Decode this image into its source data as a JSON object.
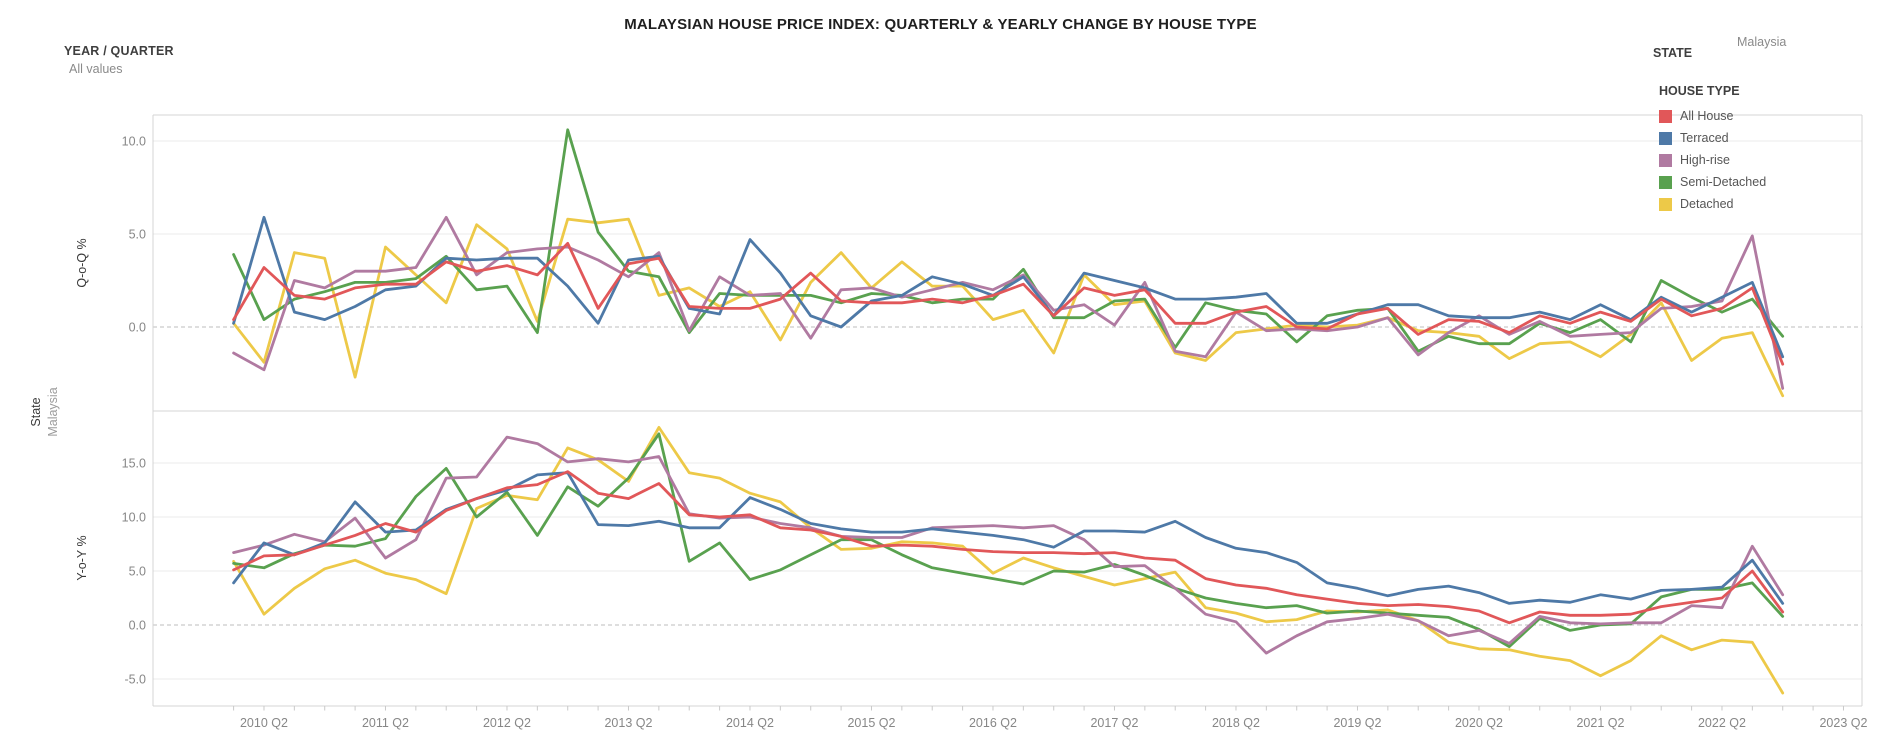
{
  "title": "MALAYSIAN HOUSE PRICE INDEX: QUARTERLY & YEARLY CHANGE BY HOUSE TYPE",
  "filters": {
    "year_quarter": {
      "label": "YEAR / QUARTER",
      "value": "All values"
    },
    "state": {
      "label": "STATE",
      "value": "Malaysia"
    }
  },
  "row_header": {
    "field": "State",
    "value": "Malaysia"
  },
  "legend": {
    "title": "HOUSE TYPE",
    "items": [
      {
        "label": "All House",
        "color": "#e15759"
      },
      {
        "label": "Terraced",
        "color": "#4e79a7"
      },
      {
        "label": "High-rise",
        "color": "#b07aa1"
      },
      {
        "label": "Semi-Detached",
        "color": "#59a14f"
      },
      {
        "label": "Detached",
        "color": "#edc948"
      }
    ]
  },
  "chart_data": {
    "type": "line",
    "title": "MALAYSIAN HOUSE PRICE INDEX: QUARTERLY & YEARLY CHANGE BY HOUSE TYPE",
    "grid": true,
    "legend_position": "top-right",
    "x": [
      "2010 Q1",
      "2010 Q2",
      "2010 Q3",
      "2010 Q4",
      "2011 Q1",
      "2011 Q2",
      "2011 Q3",
      "2011 Q4",
      "2012 Q1",
      "2012 Q2",
      "2012 Q3",
      "2012 Q4",
      "2013 Q1",
      "2013 Q2",
      "2013 Q3",
      "2013 Q4",
      "2014 Q1",
      "2014 Q2",
      "2014 Q3",
      "2014 Q4",
      "2015 Q1",
      "2015 Q2",
      "2015 Q3",
      "2015 Q4",
      "2016 Q1",
      "2016 Q2",
      "2016 Q3",
      "2016 Q4",
      "2017 Q1",
      "2017 Q2",
      "2017 Q3",
      "2017 Q4",
      "2018 Q1",
      "2018 Q2",
      "2018 Q3",
      "2018 Q4",
      "2019 Q1",
      "2019 Q2",
      "2019 Q3",
      "2019 Q4",
      "2020 Q1",
      "2020 Q2",
      "2020 Q3",
      "2020 Q4",
      "2021 Q1",
      "2021 Q2",
      "2021 Q3",
      "2021 Q4",
      "2022 Q1",
      "2022 Q2",
      "2022 Q3",
      "2022 Q4"
    ],
    "x_axis_tick_labels": [
      "2010 Q2",
      "2011 Q2",
      "2012 Q2",
      "2013 Q2",
      "2014 Q2",
      "2015 Q2",
      "2016 Q2",
      "2017 Q2",
      "2018 Q2",
      "2019 Q2",
      "2020 Q2",
      "2021 Q2",
      "2022 Q2",
      "2023 Q2"
    ],
    "panels": [
      {
        "ylabel": "Q-o-Q %",
        "ylim": [
          -4.5,
          11.4
        ],
        "yticks": [
          10,
          5,
          0
        ],
        "series": [
          {
            "name": "All House",
            "color": "#e15759",
            "values": [
              0.4,
              3.2,
              1.7,
              1.5,
              2.1,
              2.3,
              2.3,
              3.5,
              3.0,
              3.3,
              2.8,
              4.5,
              1.0,
              3.4,
              3.7,
              1.1,
              1.0,
              1.0,
              1.5,
              2.9,
              1.4,
              1.3,
              1.3,
              1.5,
              1.3,
              1.7,
              2.3,
              0.6,
              2.1,
              1.7,
              2.0,
              0.2,
              0.2,
              0.8,
              1.1,
              0.0,
              -0.1,
              0.7,
              1.0,
              -0.4,
              0.4,
              0.3,
              -0.3,
              0.6,
              0.2,
              0.8,
              0.3,
              1.5,
              0.6,
              1.0,
              2.1,
              -2.0
            ]
          },
          {
            "name": "Terraced",
            "color": "#4e79a7",
            "values": [
              0.2,
              5.9,
              0.8,
              0.4,
              1.1,
              2.0,
              2.2,
              3.7,
              3.6,
              3.7,
              3.7,
              2.2,
              0.2,
              3.6,
              3.8,
              1.0,
              0.7,
              4.7,
              2.9,
              0.6,
              0.0,
              1.4,
              1.7,
              2.7,
              2.3,
              1.7,
              2.7,
              0.6,
              2.9,
              2.5,
              2.1,
              1.5,
              1.5,
              1.6,
              1.8,
              0.2,
              0.2,
              0.7,
              1.2,
              1.2,
              0.6,
              0.5,
              0.5,
              0.8,
              0.4,
              1.2,
              0.4,
              1.6,
              0.8,
              1.6,
              2.4,
              -1.6
            ]
          },
          {
            "name": "High-rise",
            "color": "#b07aa1",
            "values": [
              -1.4,
              -2.3,
              2.5,
              2.1,
              3.0,
              3.0,
              3.2,
              5.9,
              2.8,
              4.0,
              4.2,
              4.3,
              3.6,
              2.7,
              4.0,
              -0.2,
              2.7,
              1.7,
              1.8,
              -0.6,
              2.0,
              2.1,
              1.6,
              2.0,
              2.4,
              2.0,
              2.8,
              0.9,
              1.2,
              0.1,
              2.4,
              -1.3,
              -1.6,
              0.8,
              -0.2,
              -0.1,
              -0.2,
              0.0,
              0.5,
              -1.5,
              -0.3,
              0.6,
              -0.4,
              0.3,
              -0.5,
              -0.4,
              -0.3,
              1.0,
              1.1,
              1.4,
              4.9,
              -3.3
            ]
          },
          {
            "name": "Semi-Detached",
            "color": "#59a14f",
            "values": [
              3.9,
              0.4,
              1.5,
              1.9,
              2.4,
              2.4,
              2.6,
              3.8,
              2.0,
              2.2,
              -0.3,
              10.6,
              5.1,
              3.0,
              2.7,
              -0.3,
              1.8,
              1.7,
              1.7,
              1.7,
              1.3,
              1.8,
              1.7,
              1.3,
              1.5,
              1.5,
              3.1,
              0.5,
              0.5,
              1.4,
              1.5,
              -1.1,
              1.3,
              0.9,
              0.7,
              -0.8,
              0.6,
              0.9,
              1.0,
              -1.3,
              -0.5,
              -0.9,
              -0.9,
              0.2,
              -0.3,
              0.4,
              -0.8,
              2.5,
              1.6,
              0.8,
              1.5,
              -0.5
            ]
          },
          {
            "name": "Detached",
            "color": "#edc948",
            "values": [
              0.2,
              -1.9,
              4.0,
              3.7,
              -2.7,
              4.3,
              2.8,
              1.3,
              5.5,
              4.2,
              0.3,
              5.8,
              5.6,
              5.8,
              1.7,
              2.1,
              1.1,
              1.9,
              -0.7,
              2.4,
              4.0,
              2.1,
              3.5,
              2.2,
              2.2,
              0.4,
              0.9,
              -1.4,
              2.8,
              1.2,
              1.4,
              -1.4,
              -1.8,
              -0.3,
              -0.1,
              0.1,
              0.0,
              0.1,
              0.5,
              -0.2,
              -0.3,
              -0.5,
              -1.7,
              -0.9,
              -0.8,
              -1.6,
              -0.4,
              1.3,
              -1.8,
              -0.6,
              -0.3,
              -3.7
            ]
          }
        ]
      },
      {
        "ylabel": "Y-o-Y %",
        "ylim": [
          -7.5,
          19.8
        ],
        "yticks": [
          15,
          10,
          5,
          0,
          -5
        ],
        "series": [
          {
            "name": "All House",
            "color": "#e15759",
            "values": [
              5.1,
              6.4,
              6.5,
              7.4,
              8.3,
              9.4,
              8.6,
              10.6,
              11.7,
              12.7,
              13.0,
              14.2,
              12.2,
              11.7,
              13.1,
              10.2,
              10.0,
              10.2,
              9.0,
              8.8,
              8.2,
              7.3,
              7.4,
              7.3,
              7.0,
              6.8,
              6.7,
              6.7,
              6.6,
              6.7,
              6.2,
              6.0,
              4.3,
              3.7,
              3.4,
              2.8,
              2.4,
              2.0,
              1.8,
              1.9,
              1.7,
              1.3,
              0.2,
              1.2,
              0.9,
              0.9,
              1.0,
              1.7,
              2.1,
              2.5,
              5.0,
              1.2
            ]
          },
          {
            "name": "Terraced",
            "color": "#4e79a7",
            "values": [
              3.9,
              7.6,
              6.5,
              7.6,
              11.4,
              8.6,
              8.8,
              10.7,
              11.7,
              12.5,
              13.9,
              14.1,
              9.3,
              9.2,
              9.6,
              9.0,
              9.0,
              11.8,
              10.7,
              9.4,
              8.9,
              8.6,
              8.6,
              8.9,
              8.6,
              8.3,
              7.9,
              7.2,
              8.7,
              8.7,
              8.6,
              9.6,
              8.1,
              7.1,
              6.7,
              5.8,
              3.9,
              3.4,
              2.7,
              3.3,
              3.6,
              3.0,
              2.0,
              2.3,
              2.1,
              2.8,
              2.4,
              3.2,
              3.3,
              3.5,
              6.0,
              2.0
            ]
          },
          {
            "name": "High-rise",
            "color": "#b07aa1",
            "values": [
              6.7,
              7.4,
              8.4,
              7.7,
              9.9,
              6.2,
              7.9,
              13.6,
              13.7,
              17.4,
              16.8,
              15.1,
              15.4,
              15.1,
              15.6,
              10.3,
              9.9,
              10.0,
              9.4,
              9.0,
              8.2,
              8.1,
              8.1,
              9.0,
              9.1,
              9.2,
              9.0,
              9.2,
              7.9,
              5.4,
              5.5,
              3.4,
              1.0,
              0.3,
              -2.6,
              -1.0,
              0.3,
              0.6,
              1.0,
              0.4,
              -1.0,
              -0.5,
              -1.7,
              0.8,
              0.2,
              0.1,
              0.2,
              0.2,
              1.8,
              1.6,
              7.3,
              2.8
            ]
          },
          {
            "name": "Semi-Detached",
            "color": "#59a14f",
            "values": [
              5.7,
              5.3,
              6.6,
              7.4,
              7.3,
              8.0,
              11.9,
              14.5,
              10.0,
              12.3,
              8.3,
              12.8,
              11.0,
              13.6,
              17.7,
              5.9,
              7.6,
              4.2,
              5.1,
              6.5,
              7.9,
              7.9,
              6.5,
              5.3,
              4.8,
              4.3,
              3.8,
              5.0,
              4.9,
              5.6,
              4.6,
              3.4,
              2.5,
              2.0,
              1.6,
              1.8,
              1.1,
              1.3,
              1.1,
              0.9,
              0.7,
              -0.4,
              -2.0,
              0.6,
              -0.5,
              0.0,
              0.1,
              2.6,
              3.3,
              3.3,
              3.9,
              0.8
            ]
          },
          {
            "name": "Detached",
            "color": "#edc948",
            "values": [
              5.9,
              1.0,
              3.4,
              5.2,
              6.0,
              4.8,
              4.2,
              2.9,
              10.8,
              12.0,
              11.6,
              16.4,
              15.3,
              13.3,
              18.3,
              14.1,
              13.6,
              12.2,
              11.4,
              9.0,
              7.0,
              7.1,
              7.7,
              7.6,
              7.3,
              4.8,
              6.2,
              5.3,
              4.5,
              3.7,
              4.3,
              4.9,
              1.6,
              1.1,
              0.3,
              0.5,
              1.3,
              1.2,
              1.4,
              0.4,
              -1.6,
              -2.2,
              -2.3,
              -2.9,
              -3.3,
              -4.7,
              -3.3,
              -1.0,
              -2.3,
              -1.4,
              -1.6,
              -6.3
            ]
          }
        ]
      }
    ]
  }
}
